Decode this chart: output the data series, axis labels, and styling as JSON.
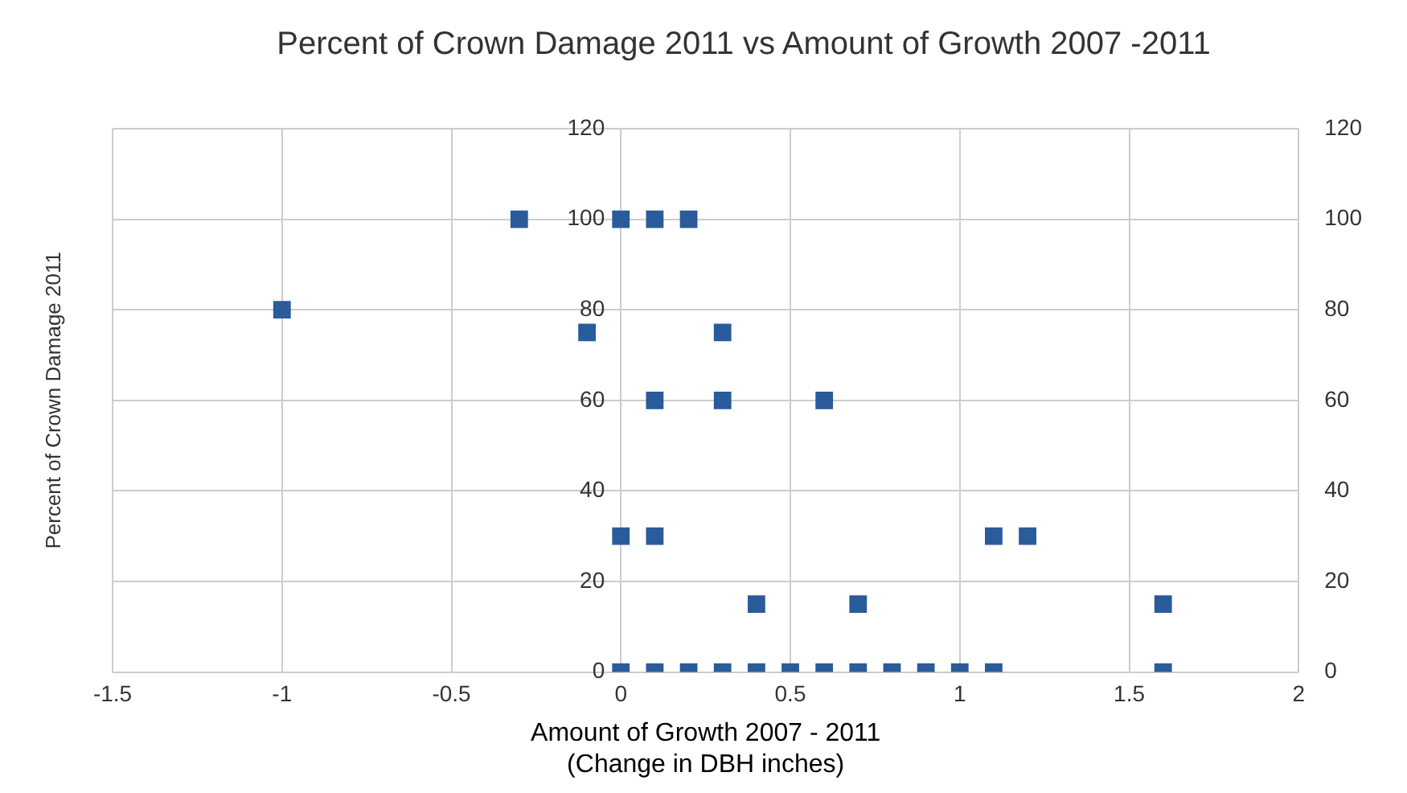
{
  "chart_data": {
    "type": "scatter",
    "title": "Percent of Crown Damage 2011 vs Amount of Growth 2007 -2011",
    "xlabel": "Amount of Growth 2007 - 2011\n(Change in DBH inches)",
    "ylabel": "Percent of Crown Damage 2011",
    "x": [
      -1,
      -0.3,
      0,
      0.1,
      0.2,
      -0.1,
      0.3,
      0.1,
      0.3,
      0.6,
      0,
      0.1,
      1.1,
      1.2,
      0.4,
      0.7,
      1.6,
      0,
      0.1,
      0.2,
      0.3,
      0.4,
      0.5,
      0.6,
      0.7,
      0.8,
      0.9,
      1.0,
      1.1,
      1.6
    ],
    "values": [
      80,
      100,
      100,
      100,
      100,
      75,
      75,
      60,
      60,
      60,
      30,
      30,
      30,
      30,
      15,
      15,
      15,
      0,
      0,
      0,
      0,
      0,
      0,
      0,
      0,
      0,
      0,
      0,
      0,
      0
    ],
    "color": "#2a5b9b",
    "marker": "square",
    "xlim": [
      -1.5,
      2
    ],
    "xticks": [
      -1.5,
      -1,
      -0.5,
      0,
      0.5,
      1,
      1.5,
      2
    ],
    "ylim": [
      0,
      120
    ],
    "yticks": [
      0,
      20,
      40,
      60,
      80,
      100,
      120
    ],
    "y2lim": [
      0,
      120
    ],
    "y2ticks": [
      0,
      20,
      40,
      60,
      80,
      100,
      120
    ],
    "grid": true,
    "legend": false
  }
}
